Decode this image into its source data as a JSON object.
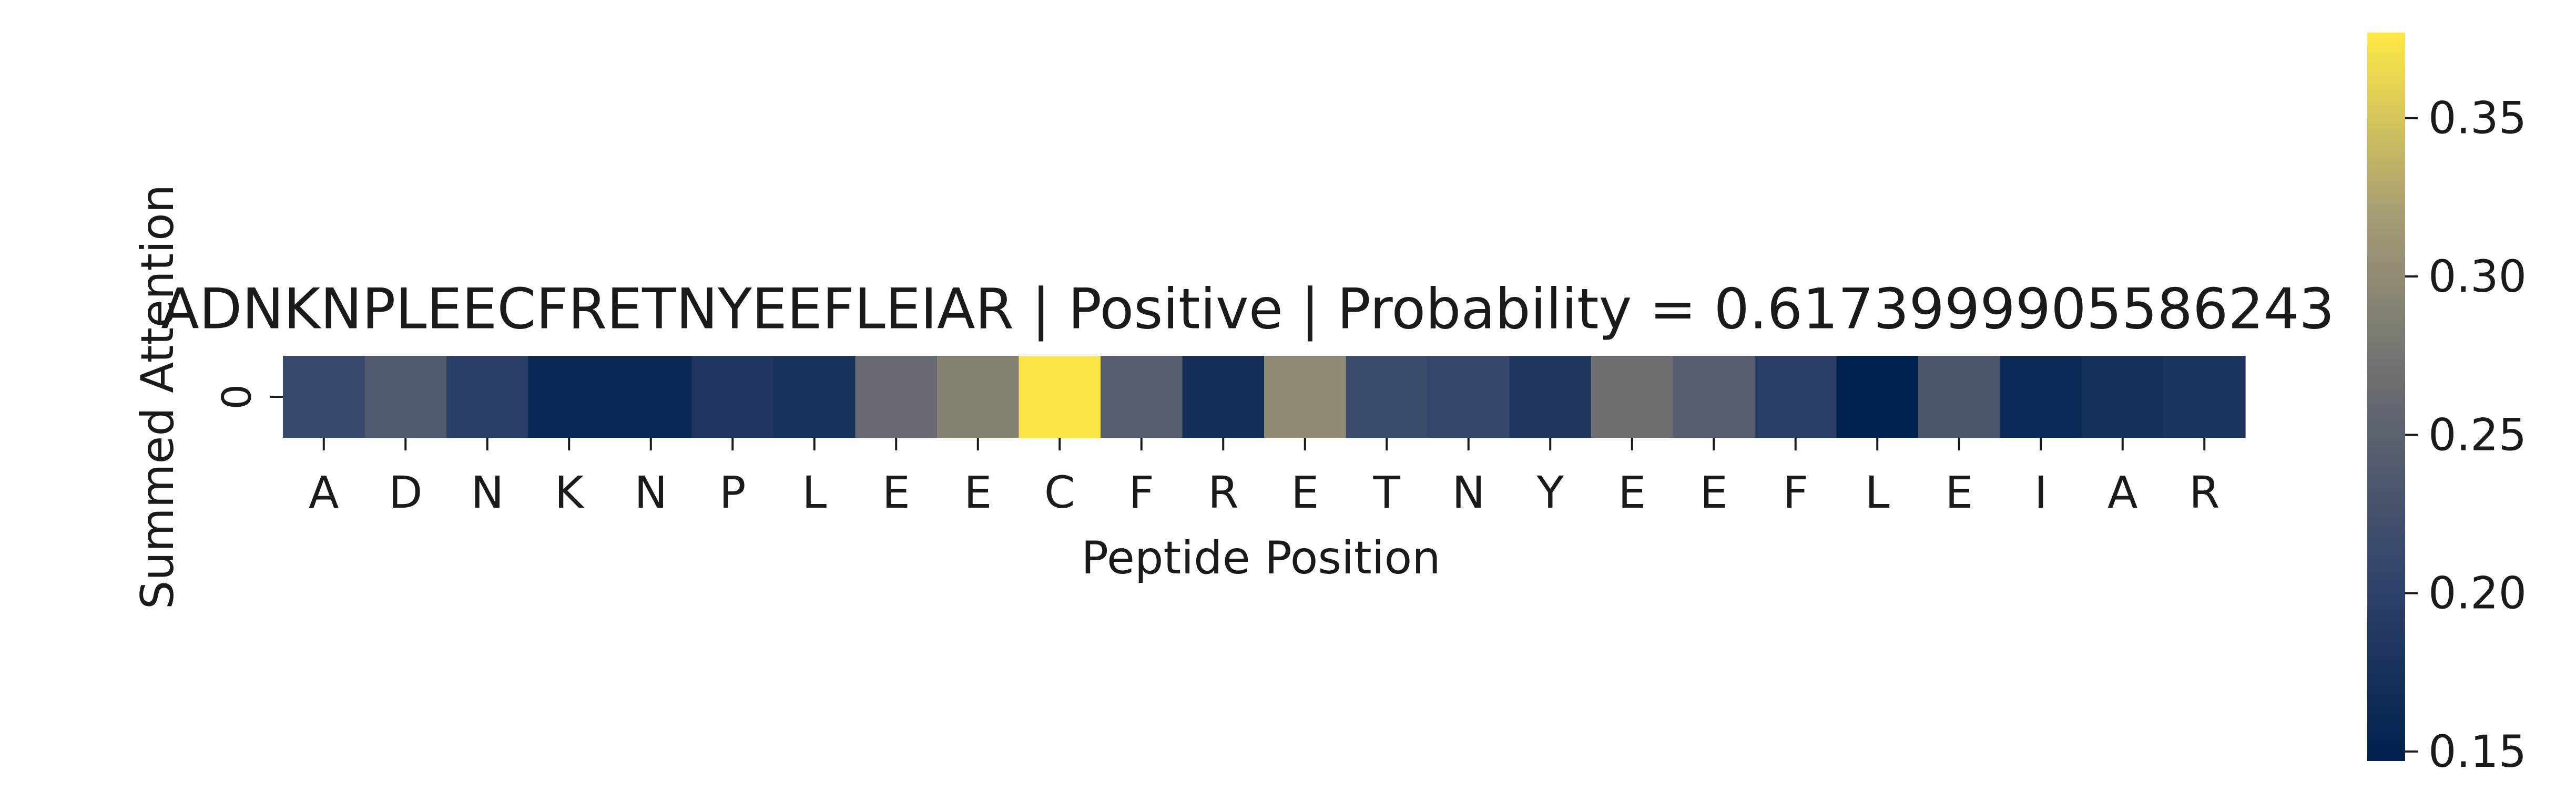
{
  "chart_data": {
    "type": "heatmap",
    "title": "ADNKNPLEECFRETNYEEFLEIAR | Positive | Probability = 0.6173999905586243",
    "xlabel": "Peptide Position",
    "ylabel": "Summed Attention",
    "row_labels": [
      "0"
    ],
    "categories": [
      "A",
      "D",
      "N",
      "K",
      "N",
      "P",
      "L",
      "E",
      "E",
      "C",
      "F",
      "R",
      "E",
      "T",
      "N",
      "Y",
      "E",
      "E",
      "F",
      "L",
      "E",
      "I",
      "A",
      "R"
    ],
    "values": [
      0.212,
      0.238,
      0.196,
      0.16,
      0.16,
      0.182,
      0.178,
      0.262,
      0.29,
      0.375,
      0.244,
      0.17,
      0.3,
      0.215,
      0.208,
      0.184,
      0.268,
      0.244,
      0.196,
      0.148,
      0.234,
      0.162,
      0.172,
      0.18
    ],
    "colorbar": {
      "colormap": "cividis",
      "vmin": 0.147,
      "vmax": 0.377,
      "ticks": [
        0.15,
        0.2,
        0.25,
        0.3,
        0.35
      ],
      "tick_labels": [
        "0.15",
        "0.20",
        "0.25",
        "0.30",
        "0.35"
      ]
    }
  }
}
